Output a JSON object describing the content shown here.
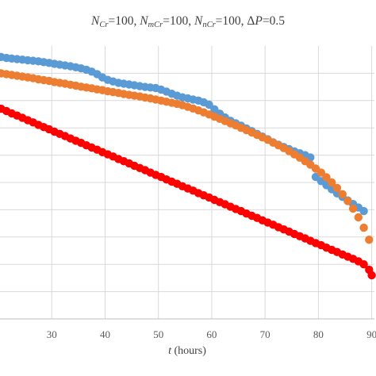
{
  "chart_data": {
    "type": "scatter",
    "title_parts": [
      {
        "text": "N",
        "style": "italic"
      },
      {
        "text": "Cr",
        "style": "italic-sub"
      },
      {
        "text": "=100, ",
        "style": "normal"
      },
      {
        "text": "N",
        "style": "italic"
      },
      {
        "text": "mCr",
        "style": "italic-sub"
      },
      {
        "text": "=100, ",
        "style": "normal"
      },
      {
        "text": "N",
        "style": "italic"
      },
      {
        "text": "nCr",
        "style": "italic-sub"
      },
      {
        "text": "=100, Δ",
        "style": "normal"
      },
      {
        "text": "P",
        "style": "italic"
      },
      {
        "text": "=0.5",
        "style": "normal"
      }
    ],
    "xlabel_var": "t",
    "xlabel_unit": " (hours)",
    "ylabel": "",
    "xlim": [
      20.3,
      90.5
    ],
    "ylim": [
      0,
      1.0
    ],
    "xticks": [
      30,
      40,
      50,
      60,
      70,
      80,
      90
    ],
    "xtick_labels": [
      "30",
      "40",
      "50",
      "60",
      "70",
      "80",
      "90"
    ],
    "yticks": [
      0.0,
      0.1,
      0.2,
      0.3,
      0.4,
      0.5,
      0.6,
      0.7,
      0.8,
      0.9
    ],
    "grid": true,
    "legend": "none",
    "series": [
      {
        "color": "#5b9bd5",
        "x": [
          20.5,
          21.5,
          22.5,
          23.5,
          24.5,
          25.5,
          26.5,
          27.5,
          28.5,
          29.5,
          30.5,
          31.5,
          32.5,
          33.5,
          34.5,
          35.5,
          36.5,
          37.5,
          38.5,
          39.5,
          40.5,
          41.5,
          42.5,
          43.5,
          44.5,
          45.5,
          46.5,
          47.5,
          48.5,
          49.5,
          50.5,
          51.5,
          52.5,
          53.5,
          54.5,
          55.5,
          56.5,
          57.5,
          58.5,
          59.5,
          60.5,
          61.5,
          62.5,
          63.5,
          64.5,
          65.5,
          66.5,
          67.5,
          68.5,
          69.5,
          70.5,
          71.5,
          72.5,
          73.5,
          74.5,
          75.5,
          76.5,
          77.5,
          78.5,
          79.5,
          80.5,
          81.5,
          82.5,
          83.5,
          84.5,
          85.5,
          86.5,
          87.5,
          88.5
        ],
        "y": [
          0.96,
          0.956,
          0.954,
          0.952,
          0.95,
          0.948,
          0.946,
          0.944,
          0.941,
          0.938,
          0.935,
          0.932,
          0.929,
          0.926,
          0.922,
          0.918,
          0.913,
          0.906,
          0.897,
          0.885,
          0.876,
          0.87,
          0.865,
          0.862,
          0.859,
          0.856,
          0.853,
          0.85,
          0.848,
          0.846,
          0.84,
          0.833,
          0.825,
          0.818,
          0.812,
          0.808,
          0.804,
          0.8,
          0.794,
          0.785,
          0.768,
          0.752,
          0.738,
          0.726,
          0.717,
          0.708,
          0.698,
          0.688,
          0.678,
          0.668,
          0.658,
          0.647,
          0.638,
          0.63,
          0.622,
          0.614,
          0.607,
          0.6,
          0.592,
          0.52,
          0.505,
          0.49,
          0.475,
          0.46,
          0.447,
          0.434,
          0.421,
          0.408,
          0.395
        ]
      },
      {
        "color": "#ed7d31",
        "x": [
          20.5,
          21.5,
          22.5,
          23.5,
          24.5,
          25.5,
          26.5,
          27.5,
          28.5,
          29.5,
          30.5,
          31.5,
          32.5,
          33.5,
          34.5,
          35.5,
          36.5,
          37.5,
          38.5,
          39.5,
          40.5,
          41.5,
          42.5,
          43.5,
          44.5,
          45.5,
          46.5,
          47.5,
          48.5,
          49.5,
          50.5,
          51.5,
          52.5,
          53.5,
          54.5,
          55.5,
          56.5,
          57.5,
          58.5,
          59.5,
          60.5,
          61.5,
          62.5,
          63.5,
          64.5,
          65.5,
          66.5,
          67.5,
          68.5,
          69.5,
          70.5,
          71.5,
          72.5,
          73.5,
          74.5,
          75.5,
          76.5,
          77.5,
          78.5,
          79.5,
          80.5,
          81.5,
          82.5,
          83.5,
          84.5,
          85.5,
          86.5,
          87.5,
          88.5,
          89.5
        ],
        "y": [
          0.9,
          0.897,
          0.894,
          0.891,
          0.888,
          0.885,
          0.882,
          0.878,
          0.875,
          0.872,
          0.868,
          0.865,
          0.862,
          0.858,
          0.855,
          0.851,
          0.848,
          0.845,
          0.841,
          0.838,
          0.834,
          0.831,
          0.828,
          0.824,
          0.821,
          0.818,
          0.815,
          0.811,
          0.808,
          0.804,
          0.8,
          0.796,
          0.792,
          0.788,
          0.783,
          0.777,
          0.771,
          0.764,
          0.757,
          0.749,
          0.741,
          0.733,
          0.725,
          0.717,
          0.709,
          0.7,
          0.692,
          0.683,
          0.674,
          0.665,
          0.656,
          0.646,
          0.636,
          0.626,
          0.615,
          0.603,
          0.591,
          0.578,
          0.565,
          0.551,
          0.536,
          0.519,
          0.5,
          0.48,
          0.457,
          0.432,
          0.404,
          0.372,
          0.334,
          0.29
        ]
      },
      {
        "color": "#ff0000",
        "x": [
          20.5,
          21.5,
          22.5,
          23.5,
          24.5,
          25.5,
          26.5,
          27.5,
          28.5,
          29.5,
          30.5,
          31.5,
          32.5,
          33.5,
          34.5,
          35.5,
          36.5,
          37.5,
          38.5,
          39.5,
          40.5,
          41.5,
          42.5,
          43.5,
          44.5,
          45.5,
          46.5,
          47.5,
          48.5,
          49.5,
          50.5,
          51.5,
          52.5,
          53.5,
          54.5,
          55.5,
          56.5,
          57.5,
          58.5,
          59.5,
          60.5,
          61.5,
          62.5,
          63.5,
          64.5,
          65.5,
          66.5,
          67.5,
          68.5,
          69.5,
          70.5,
          71.5,
          72.5,
          73.5,
          74.5,
          75.5,
          76.5,
          77.5,
          78.5,
          79.5,
          80.5,
          81.5,
          82.5,
          83.5,
          84.5,
          85.5,
          86.5,
          87.5,
          88.5,
          89.5,
          90.0
        ],
        "y": [
          0.77,
          0.762,
          0.753,
          0.745,
          0.737,
          0.728,
          0.72,
          0.711,
          0.703,
          0.695,
          0.686,
          0.678,
          0.67,
          0.661,
          0.653,
          0.645,
          0.636,
          0.628,
          0.62,
          0.611,
          0.603,
          0.595,
          0.586,
          0.578,
          0.57,
          0.561,
          0.553,
          0.545,
          0.536,
          0.528,
          0.52,
          0.511,
          0.503,
          0.495,
          0.486,
          0.478,
          0.47,
          0.461,
          0.453,
          0.445,
          0.436,
          0.428,
          0.42,
          0.411,
          0.403,
          0.395,
          0.386,
          0.378,
          0.37,
          0.361,
          0.353,
          0.345,
          0.336,
          0.328,
          0.32,
          0.311,
          0.303,
          0.295,
          0.286,
          0.278,
          0.27,
          0.261,
          0.253,
          0.245,
          0.236,
          0.228,
          0.22,
          0.211,
          0.2,
          0.18,
          0.16
        ]
      }
    ]
  }
}
